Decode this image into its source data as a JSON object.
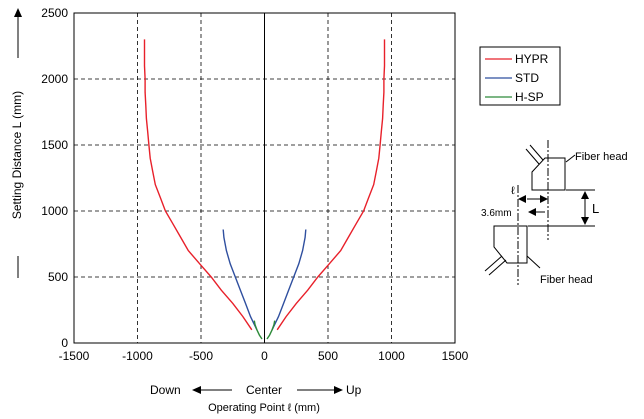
{
  "chart_data": {
    "type": "line",
    "xlabel": "Operating Point ℓ (mm)",
    "ylabel": "Setting Distance L (mm)",
    "xlim": [
      -1500,
      1500
    ],
    "ylim": [
      0,
      2500
    ],
    "xticks": [
      "-1500",
      "-1000",
      "-500",
      "0",
      "500",
      "1000",
      "1500"
    ],
    "yticks": [
      "0",
      "500",
      "1000",
      "1500",
      "2000",
      "2500"
    ],
    "grid": true,
    "legend_position": "right",
    "direction_labels": {
      "left": "Down",
      "center": "Center",
      "right": "Up"
    },
    "series": [
      {
        "name": "HYPR",
        "color": "#e8202a",
        "points": [
          [
            100,
            100
          ],
          [
            170,
            200
          ],
          [
            250,
            300
          ],
          [
            340,
            400
          ],
          [
            420,
            500
          ],
          [
            510,
            600
          ],
          [
            600,
            700
          ],
          [
            660,
            800
          ],
          [
            720,
            900
          ],
          [
            780,
            1000
          ],
          [
            820,
            1100
          ],
          [
            860,
            1200
          ],
          [
            880,
            1300
          ],
          [
            900,
            1400
          ],
          [
            910,
            1500
          ],
          [
            920,
            1600
          ],
          [
            930,
            1700
          ],
          [
            935,
            1800
          ],
          [
            940,
            1900
          ],
          [
            940,
            2000
          ],
          [
            945,
            2100
          ],
          [
            945,
            2200
          ],
          [
            945,
            2300
          ]
        ]
      },
      {
        "name": "STD",
        "color": "#2f4f9f",
        "points": [
          [
            60,
            100
          ],
          [
            110,
            200
          ],
          [
            150,
            300
          ],
          [
            190,
            400
          ],
          [
            230,
            500
          ],
          [
            270,
            600
          ],
          [
            300,
            700
          ],
          [
            320,
            800
          ],
          [
            325,
            860
          ]
        ]
      },
      {
        "name": "H-SP",
        "color": "#2e8b3a",
        "points": [
          [
            20,
            30
          ],
          [
            40,
            60
          ],
          [
            60,
            100
          ],
          [
            75,
            140
          ],
          [
            80,
            170
          ]
        ]
      }
    ]
  },
  "diagram": {
    "label_fiber_head_top": "Fiber head",
    "label_fiber_head_bottom": "Fiber head",
    "label_l_small": "ℓ",
    "label_offset": "3.6mm",
    "label_L": "L"
  }
}
